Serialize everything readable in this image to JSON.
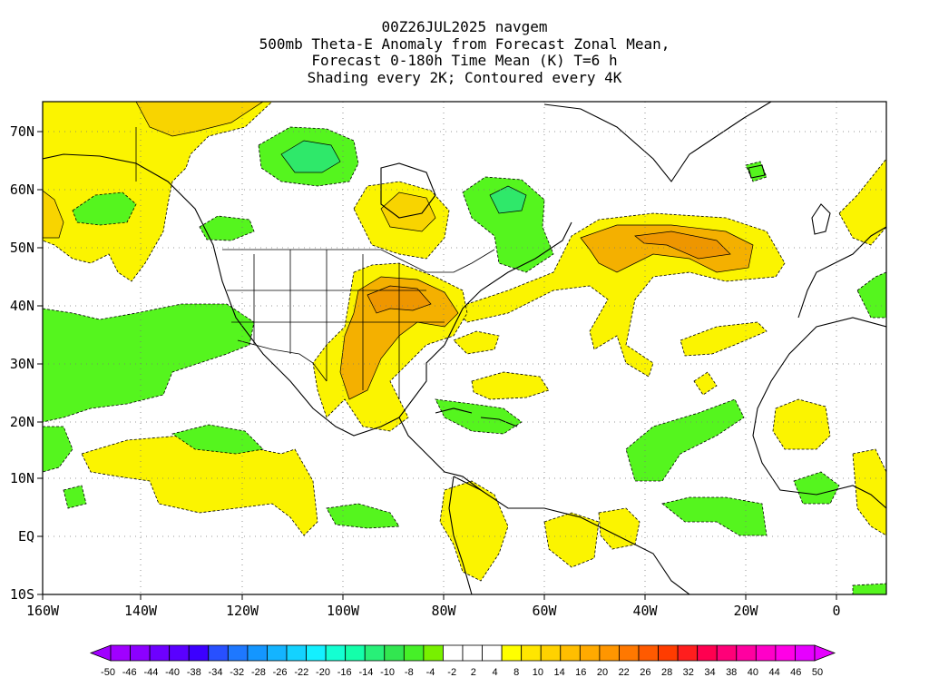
{
  "header": {
    "title_lines": [
      "00Z26JUL2025 navgem",
      "500mb Theta-E Anomaly from Forecast Zonal Mean,",
      "Forecast 0-180h Time Mean (K) T=6 h",
      "Shading every 2K; Contoured every 4K"
    ]
  },
  "map": {
    "lon_labels": [
      "160W",
      "140W",
      "120W",
      "100W",
      "80W",
      "60W",
      "40W",
      "20W",
      "0"
    ],
    "lat_labels": [
      "70N",
      "60N",
      "50N",
      "40N",
      "30N",
      "20N",
      "10N",
      "EQ",
      "10S"
    ]
  },
  "colorbar": {
    "labels": [
      "-50",
      "-46",
      "-44",
      "-40",
      "-38",
      "-34",
      "-32",
      "-28",
      "-26",
      "-22",
      "-20",
      "-16",
      "-14",
      "-10",
      "-8",
      "-4",
      "-2",
      "2",
      "4",
      "8",
      "10",
      "14",
      "16",
      "20",
      "22",
      "26",
      "28",
      "32",
      "34",
      "38",
      "40",
      "44",
      "46",
      "50"
    ],
    "colors": [
      "#a000ff",
      "#8c00ff",
      "#6e00ff",
      "#5a00ff",
      "#3c00ff",
      "#2850ff",
      "#1e78ff",
      "#1496ff",
      "#14b4ff",
      "#14d2ff",
      "#14f0ff",
      "#14ffd2",
      "#14ffaa",
      "#28f078",
      "#32e650",
      "#46f028",
      "#78f000",
      "#ffffff",
      "#ffffff",
      "#ffffff",
      "#ffff00",
      "#ffe600",
      "#ffd200",
      "#ffbe00",
      "#ffaa00",
      "#ff9600",
      "#ff7800",
      "#ff5a00",
      "#ff3c00",
      "#ff1e1e",
      "#ff0050",
      "#ff0078",
      "#ff00a0",
      "#ff00c8",
      "#ff00e6",
      "#e600ff"
    ]
  },
  "colors": {
    "green": "#55f51e",
    "green_mid": "#2fe86a",
    "green_dark": "#14e6b4",
    "yellow": "#fbf400",
    "yellow_dark": "#f8d400",
    "orange": "#f4b000",
    "orange_dark": "#ee9600"
  }
}
